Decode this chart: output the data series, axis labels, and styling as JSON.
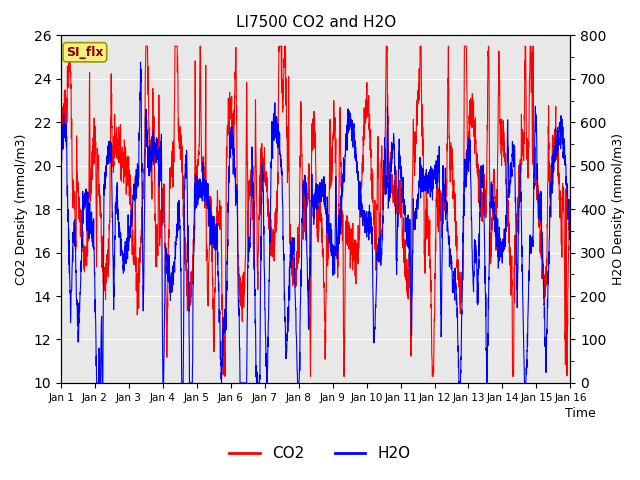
{
  "title": "LI7500 CO2 and H2O",
  "xlabel": "Time",
  "ylabel_left": "CO2 Density (mmol/m3)",
  "ylabel_right": "H2O Density (mmol/m3)",
  "co2_color": "#ff0000",
  "h2o_color": "#0000ff",
  "co2_label": "CO2",
  "h2o_label": "H2O",
  "ylim_left": [
    10,
    26
  ],
  "ylim_right": [
    0,
    800
  ],
  "annotation_text": "SI_flx",
  "annotation_bg": "#f5f080",
  "plot_bg": "#e8e8e8",
  "fig_bg": "#ffffff",
  "n_points": 3000,
  "seed": 7
}
